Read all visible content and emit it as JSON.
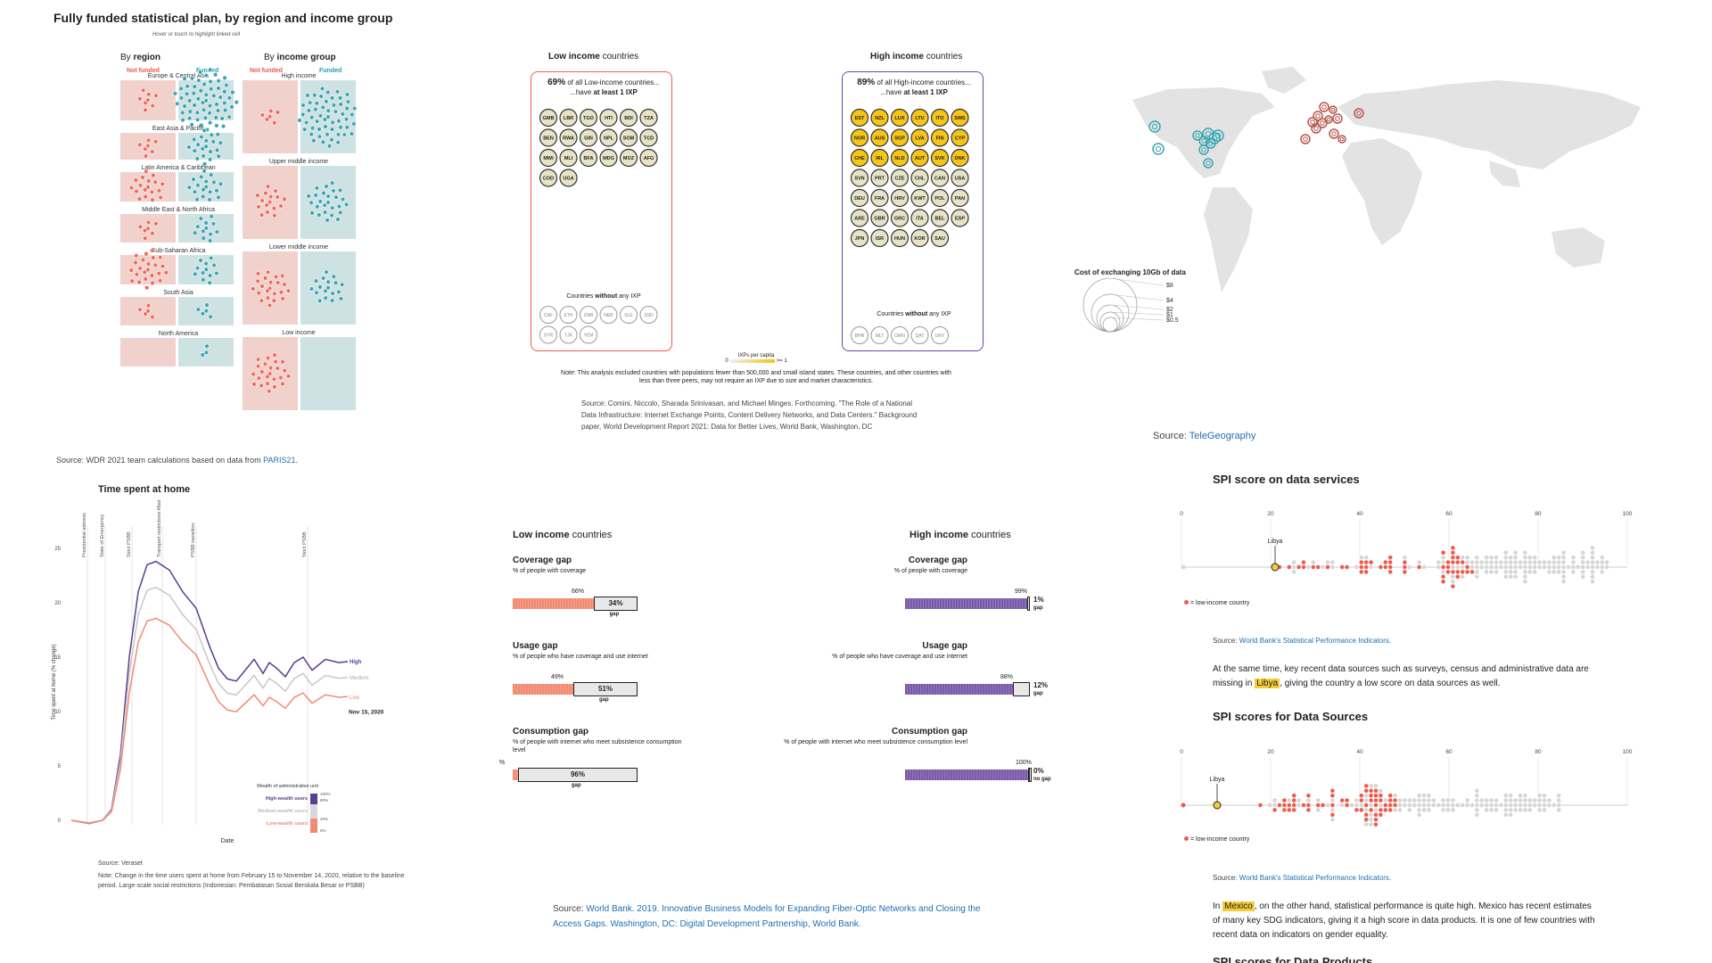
{
  "panel1": {
    "title": "Fully funded statistical plan, by region and income group",
    "hint": "Hover or touch to highlight linked cell",
    "col_region_prefix": "By ",
    "col_region_bold": "region",
    "col_income_prefix": "By ",
    "col_income_bold": "income group",
    "not_funded": "Not funded",
    "funded": "Funded",
    "regions": [
      {
        "name": "Europe & Central Asia",
        "nf": 8,
        "f": 60
      },
      {
        "name": "East Asia & Pacific",
        "nf": 7,
        "f": 20
      },
      {
        "name": "Latin America & Caribbean",
        "nf": 18,
        "f": 18
      },
      {
        "name": "Middle East & North Africa",
        "nf": 7,
        "f": 12
      },
      {
        "name": "Sub-Saharan Africa",
        "nf": 24,
        "f": 12
      },
      {
        "name": "South Asia",
        "nf": 5,
        "f": 5
      },
      {
        "name": "North America",
        "nf": 0,
        "f": 3
      }
    ],
    "incomes": [
      {
        "name": "High income",
        "nf": 6,
        "f": 55
      },
      {
        "name": "Upper middle income",
        "nf": 16,
        "f": 26
      },
      {
        "name": "Lower middle income",
        "nf": 22,
        "f": 18
      },
      {
        "name": "Low income",
        "nf": 24,
        "f": 0
      }
    ],
    "source_prefix": "Source: WDR 2021 team calculations based on data from ",
    "source_link": "PARIS21",
    "source_suffix": "."
  },
  "panel2": {
    "low_title_bold": "Low income",
    "low_title_rest": " countries",
    "high_title_bold": "High income",
    "high_title_rest": " countries",
    "low_pct": "69%",
    "low_line1": " of all Low-income countries...",
    "low_line2_pre": "...have ",
    "low_line2_bold": "at least 1 IXP",
    "high_pct": "89%",
    "high_line1": " of all High-income countries...",
    "high_line2_pre": "...have ",
    "high_line2_bold": "at least 1 IXP",
    "low_with": [
      "GMB",
      "LBR",
      "TGO",
      "HTI",
      "BDI",
      "TZA",
      "BEN",
      "RWA",
      "GIN",
      "NPL",
      "SOM",
      "TCD",
      "MWI",
      "MLI",
      "BFA",
      "MDG",
      "MOZ",
      "AFG",
      "COD",
      "UGA"
    ],
    "low_without": [
      "CAF",
      "ETH",
      "GNB",
      "NER",
      "SLE",
      "SSD",
      "SYR",
      "TJK",
      "YEM"
    ],
    "high_with": [
      "EST",
      "NZL",
      "LUX",
      "LTU",
      "ITO",
      "SWE",
      "NOR",
      "AUS",
      "SGP",
      "LVA",
      "FIN",
      "CYP",
      "CHE",
      "IRL",
      "NLD",
      "AUT",
      "SVK",
      "DNK",
      "SVN",
      "PRT",
      "CZE",
      "CHL",
      "CAN",
      "USA",
      "DEU",
      "FRA",
      "HRV",
      "KWT",
      "POL",
      "PAN",
      "ARE",
      "GBR",
      "GRC",
      "ITA",
      "BEL",
      "ESP",
      "JPN",
      "ISR",
      "HUN",
      "KOR",
      "SAU"
    ],
    "high_highlight": [
      "EST",
      "NZL",
      "LUX",
      "LTU",
      "ITO",
      "SWE",
      "NOR",
      "AUS",
      "SGP",
      "LVA",
      "FIN",
      "CYP",
      "CHE",
      "IRL",
      "NLD",
      "AUT",
      "SVK",
      "DNK"
    ],
    "high_without": [
      "BHR",
      "MLT",
      "OMN",
      "QAT",
      "URY"
    ],
    "without_pre": "Countries ",
    "without_bold": "without",
    "without_post": " any IXP",
    "legend_title": "IXPs per capita",
    "legend_min": "0",
    "legend_max": ">= 1",
    "note": "Note: This analysis excluded countries with populations fewer than 500,000 and small island states. These countries, and other countries with less than three peers, may not require an IXP due to size and market characteristics.",
    "source": "Source: Comini, Niccolo, Sharada Srinivasan, and Michael Minges. Forthcoming. \"The Role of a National Data Infrastructure: Internet Exchange Points, Content Delivery Networks, and Data Centers.\" Background paper, World Development Report 2021: Data for Better Lives, World Bank, Washington, DC"
  },
  "panel3": {
    "legend_title": "Cost of exchanging 10Gb of data",
    "legend_values": [
      "$8",
      "$4",
      "$2",
      "$1",
      "$0.5"
    ],
    "source_prefix": "Source: ",
    "source_link": "TeleGeography",
    "colors": {
      "us": "#3aa7b3",
      "eu": "#b5574d",
      "land": "#e3e3e3"
    }
  },
  "panel4": {
    "title": "Time spent at home",
    "ylabel": "Time spent at home (% change)",
    "xlabel": "Date",
    "yticks": [
      "25",
      "20",
      "15",
      "10",
      "5",
      "0"
    ],
    "events": [
      "Presidential address",
      "State of Emergency",
      "Strict PSBB",
      "Transport restrictions lifted",
      "PSBB transition",
      "Strict PSBB"
    ],
    "series_labels": [
      "High",
      "Medium",
      "Low"
    ],
    "date_label": "Nov 15, 2020",
    "legend_title": "Wealth of administrative unit",
    "legend_items": [
      "High-wealth users",
      "Medium-wealth users",
      "Low-wealth users"
    ],
    "legend_ticks": [
      "100%",
      "80%",
      "40%",
      "0%"
    ],
    "source": "Source: Veraset",
    "note": "Note: Change in the time users spent at home from February 15 to November 14, 2020, relative to the baseline period. Large-scale social restrictions (Indonesian: Pembatasan Sosial Berskala Besar or PSBB)"
  },
  "panel5": {
    "low_bold": "Low income",
    "low_rest": " countries",
    "high_bold": "High income",
    "high_rest": " countries",
    "gaps": [
      {
        "title": "Coverage gap",
        "sub": "% of people with coverage",
        "low_val": "66%",
        "low_gap": "34%",
        "high_val": "99%",
        "high_gap": "1%"
      },
      {
        "title": "Usage gap",
        "sub": "% of people who have coverage and use internet",
        "low_val": "49%",
        "low_gap": "51%",
        "high_val": "88%",
        "high_gap": "12%"
      },
      {
        "title": "Consumption gap",
        "sub": "% of people with internet who meet subsistence consumption level",
        "low_val": "4%",
        "low_gap": "96%",
        "high_val": "100%",
        "high_gap": "0%"
      }
    ],
    "gap_word": "gap",
    "no_gap": "no gap",
    "source_prefix": "Source: ",
    "source_link": "World Bank. 2019. Innovative Business Models for Expanding Fiber-Optic Networks and Closing the Access Gaps. Washington, DC: Digital Development Partnership, World Bank."
  },
  "panel6": {
    "title1": "SPI score on data services",
    "title2": "SPI scores for Data Sources",
    "title3": "SPI scores for Data Products",
    "ticks": [
      "0",
      "20",
      "40",
      "60",
      "80",
      "100"
    ],
    "libya": "Libya",
    "legend": "= low-income country",
    "source_prefix": "Source: ",
    "source_link": "World Bank's Statistical Performance Indicators",
    "source_suffix": ".",
    "para1_pre": "At the same time, key recent data sources such as surveys, census and administrative data are missing in ",
    "para1_mark": "Libya",
    "para1_post": ", giving the country a low score on data sources as well.",
    "para2_pre": "In ",
    "para2_mark": "Mexico",
    "para2_post": ", on the other hand, statistical performance is quite high. Mexico has recent estimates of many key SDG indicators, giving it a high score in data products. It is one of few countries with recent data on indicators on gender equality."
  }
}
